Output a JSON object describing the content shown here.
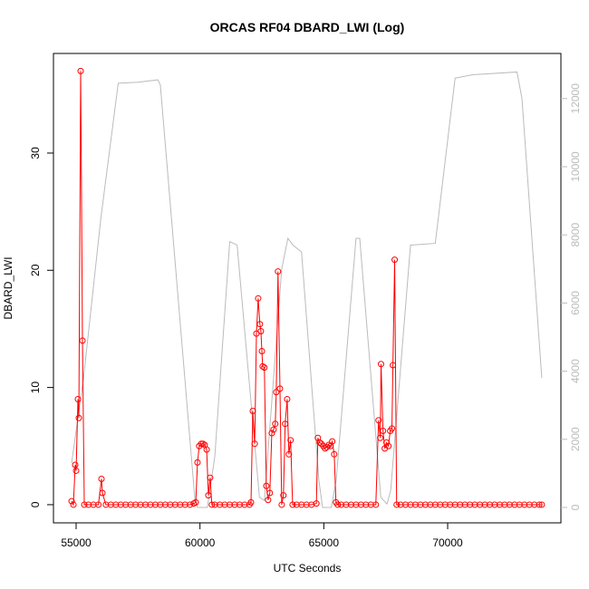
{
  "chart_data": {
    "type": "line",
    "title": "ORCAS RF04 DBARD_LWI (Log)",
    "x_label": "UTC Seconds",
    "y_label": "DBARD_LWI",
    "xlim": [
      54085,
      74572
    ],
    "xticks": [
      55000,
      60000,
      65000,
      70000
    ],
    "ylim": [
      -1.55,
      38.5
    ],
    "yticks": [
      0,
      10,
      20,
      30
    ],
    "y2lim": [
      -452,
      13324
    ],
    "y2ticks": [
      0,
      2000,
      4000,
      6000,
      8000,
      10000,
      12000
    ],
    "y2_color": "#bbbbbb",
    "series": [
      {
        "color": "#ff0000",
        "marker": "circle",
        "x": [
          54817,
          54890,
          54963,
          55000,
          55073,
          55110,
          55183,
          55256,
          55330,
          55500,
          55700,
          55900,
          56024,
          56061,
          56200,
          56400,
          56600,
          56800,
          57000,
          57200,
          57400,
          57600,
          57800,
          58000,
          58200,
          58400,
          58600,
          58800,
          59000,
          59200,
          59400,
          59600,
          59750,
          59830,
          59900,
          59970,
          60050,
          60120,
          60190,
          60270,
          60340,
          60410,
          60480,
          60600,
          60800,
          61000,
          61200,
          61400,
          61600,
          61800,
          62000,
          62060,
          62133,
          62210,
          62280,
          62350,
          62420,
          62460,
          62500,
          62530,
          62600,
          62680,
          62750,
          62820,
          62900,
          62970,
          63040,
          63080,
          63150,
          63230,
          63300,
          63370,
          63440,
          63520,
          63590,
          63660,
          63740,
          63900,
          64100,
          64300,
          64500,
          64700,
          64760,
          64830,
          64900,
          64980,
          65050,
          65120,
          65200,
          65270,
          65340,
          65420,
          65490,
          65560,
          65700,
          65900,
          66100,
          66300,
          66500,
          66700,
          66900,
          67100,
          67210,
          67280,
          67310,
          67390,
          67460,
          67530,
          67610,
          67680,
          67750,
          67790,
          67860,
          67940,
          68100,
          68300,
          68500,
          68700,
          68900,
          69100,
          69300,
          69500,
          69700,
          69900,
          70100,
          70300,
          70500,
          70700,
          70900,
          71100,
          71300,
          71500,
          71700,
          71900,
          72100,
          72300,
          72500,
          72700,
          72900,
          73100,
          73300,
          73500,
          73700,
          73800
        ],
        "values": [
          0.3,
          0,
          3.4,
          2.9,
          9.0,
          7.4,
          37.0,
          14.0,
          0,
          0,
          0,
          0,
          2.2,
          1.0,
          0,
          0,
          0,
          0,
          0,
          0,
          0,
          0,
          0,
          0,
          0,
          0,
          0,
          0,
          0,
          0,
          0,
          0,
          0.1,
          0.2,
          3.6,
          5.0,
          5.2,
          5.2,
          5.1,
          4.7,
          0.8,
          2.3,
          0,
          0,
          0,
          0,
          0,
          0,
          0,
          0,
          0,
          0.2,
          8.0,
          5.2,
          14.6,
          17.6,
          15.4,
          14.8,
          13.1,
          11.8,
          11.7,
          1.6,
          0.4,
          1.0,
          6.1,
          6.4,
          6.9,
          9.6,
          19.9,
          9.9,
          0,
          0.8,
          6.9,
          9.0,
          4.3,
          5.5,
          0,
          0,
          0,
          0,
          0,
          0.1,
          5.7,
          5.3,
          5.2,
          5.0,
          4.8,
          4.9,
          5.1,
          5.0,
          5.4,
          4.3,
          0.2,
          0,
          0,
          0,
          0,
          0,
          0,
          0,
          0,
          0,
          7.2,
          5.7,
          12.0,
          6.3,
          4.8,
          5.3,
          5.0,
          6.3,
          6.5,
          11.9,
          20.9,
          0,
          0,
          0,
          0,
          0,
          0,
          0,
          0,
          0,
          0,
          0,
          0,
          0,
          0,
          0,
          0,
          0,
          0,
          0,
          0,
          0,
          0,
          0,
          0,
          0,
          0,
          0,
          0,
          0,
          0,
          0
        ]
      },
      {
        "color": "#bbbbbb",
        "axis": "y2",
        "x": [
          54817,
          55300,
          56000,
          56700,
          57500,
          58300,
          58400,
          59800,
          59900,
          60300,
          60600,
          61200,
          61500,
          62400,
          62600,
          63300,
          63550,
          63750,
          64100,
          64800,
          64950,
          65300,
          65500,
          66300,
          66450,
          67300,
          67550,
          67700,
          68500,
          69500,
          70300,
          71000,
          72800,
          73000,
          73800
        ],
        "values": [
          1300,
          3800,
          8500,
          12450,
          12480,
          12550,
          12400,
          200,
          0,
          0,
          1500,
          7800,
          7700,
          300,
          200,
          7000,
          7900,
          7700,
          7500,
          800,
          0,
          0,
          800,
          7900,
          7900,
          300,
          100,
          500,
          7700,
          7750,
          12600,
          12700,
          12780,
          12000,
          3800
        ]
      }
    ]
  }
}
